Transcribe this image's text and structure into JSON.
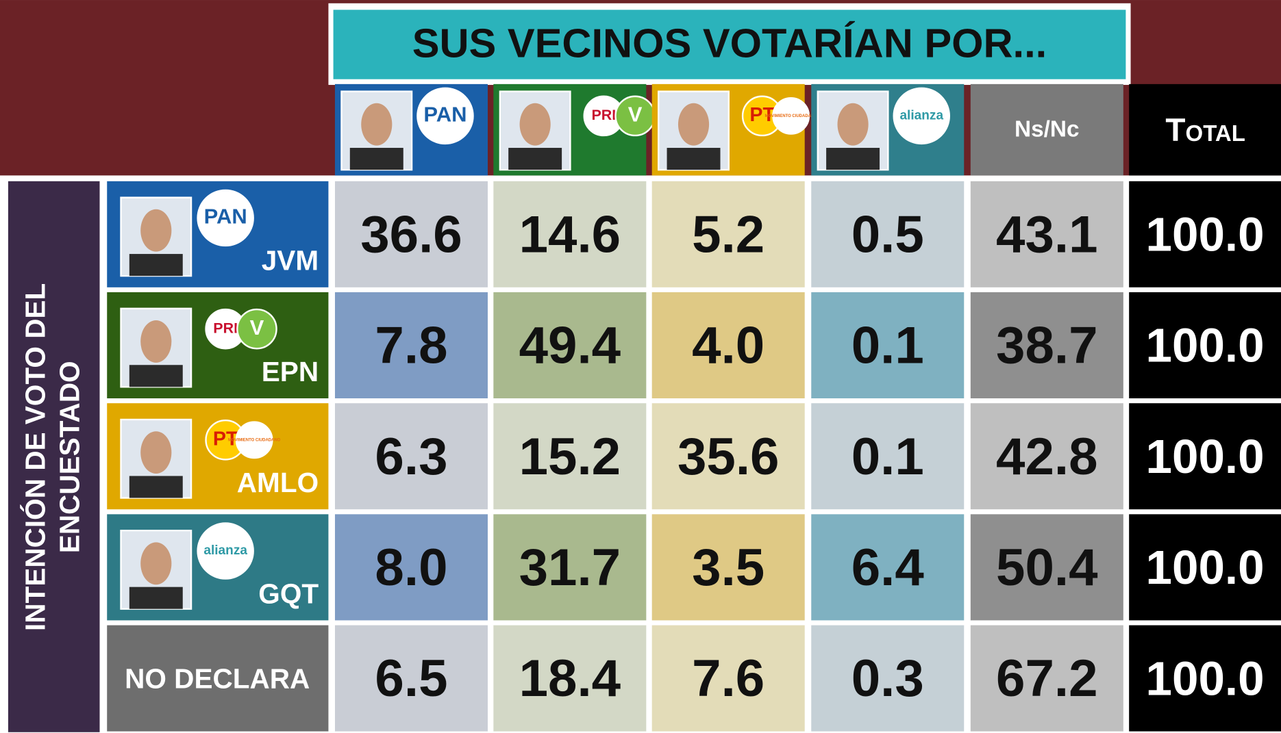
{
  "title": "SUS VECINOS VOTARÍAN POR...",
  "side_label": [
    "INTENCIÓN DE VOTO DEL",
    "ENCUESTADO"
  ],
  "columns": [
    {
      "logos": [
        "PAN"
      ]
    },
    {
      "logos": [
        "PRI",
        "V"
      ]
    },
    {
      "logos": [
        "PT",
        "MOVIMIENTO CIUDADANO"
      ]
    },
    {
      "logos": [
        "alianza"
      ]
    },
    {
      "label": "Ns/Nc"
    },
    {
      "label": "Total"
    }
  ],
  "rows": [
    {
      "label": "JVM",
      "logos": [
        "PAN"
      ],
      "values": [
        "36.6",
        "14.6",
        "5.2",
        "0.5",
        "43.1",
        "100.0"
      ]
    },
    {
      "label": "EPN",
      "logos": [
        "PRI",
        "V"
      ],
      "values": [
        "7.8",
        "49.4",
        "4.0",
        "0.1",
        "38.7",
        "100.0"
      ]
    },
    {
      "label": "AMLO",
      "logos": [
        "PT",
        "MOVIMIENTO CIUDADANO"
      ],
      "values": [
        "6.3",
        "15.2",
        "35.6",
        "0.1",
        "42.8",
        "100.0"
      ]
    },
    {
      "label": "GQT",
      "logos": [
        "alianza"
      ],
      "values": [
        "8.0",
        "31.7",
        "3.5",
        "6.4",
        "50.4",
        "100.0"
      ]
    },
    {
      "label": "NO DECLARA",
      "values": [
        "6.5",
        "18.4",
        "7.6",
        "0.3",
        "67.2",
        "100.0"
      ]
    }
  ]
}
